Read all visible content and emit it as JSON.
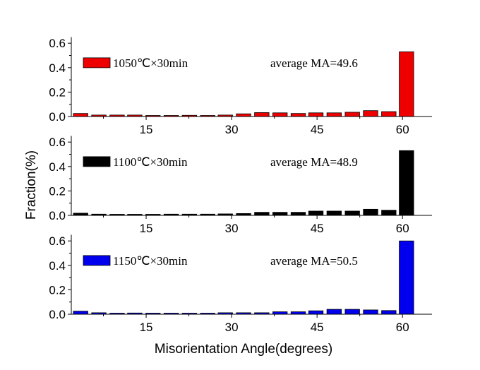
{
  "chart_data": [
    {
      "type": "bar",
      "legend": "1050℃×30min",
      "annotation": "average MA=49.6",
      "color": "#ee0000",
      "x": [
        3.5,
        6.7,
        9.9,
        13.0,
        16.2,
        19.4,
        22.6,
        25.8,
        28.9,
        32.1,
        35.3,
        38.5,
        41.7,
        44.8,
        48.0,
        51.2,
        54.4,
        57.6,
        60.7
      ],
      "values": [
        0.025,
        0.012,
        0.012,
        0.012,
        0.008,
        0.008,
        0.01,
        0.008,
        0.012,
        0.022,
        0.032,
        0.03,
        0.025,
        0.03,
        0.03,
        0.035,
        0.048,
        0.04,
        0.53
      ],
      "ylim": [
        0,
        0.65
      ],
      "xlim": [
        2,
        65
      ],
      "yticks": [
        "0.0",
        "0.2",
        "0.4",
        "0.6"
      ],
      "xticks": [
        "15",
        "30",
        "45",
        "60"
      ],
      "legend_position": "top-left"
    },
    {
      "type": "bar",
      "legend": "1100℃×30min",
      "annotation": "average MA=48.9",
      "color": "#000000",
      "x": [
        3.5,
        6.7,
        9.9,
        13.0,
        16.2,
        19.4,
        22.6,
        25.8,
        28.9,
        32.1,
        35.3,
        38.5,
        41.7,
        44.8,
        48.0,
        51.2,
        54.4,
        57.6,
        60.7
      ],
      "values": [
        0.018,
        0.01,
        0.008,
        0.008,
        0.008,
        0.01,
        0.01,
        0.01,
        0.012,
        0.015,
        0.025,
        0.025,
        0.025,
        0.035,
        0.035,
        0.035,
        0.05,
        0.042,
        0.53
      ],
      "ylim": [
        0,
        0.65
      ],
      "xlim": [
        2,
        65
      ],
      "yticks": [
        "0.0",
        "0.2",
        "0.4",
        "0.6"
      ],
      "xticks": [
        "15",
        "30",
        "45",
        "60"
      ],
      "legend_position": "top-left"
    },
    {
      "type": "bar",
      "legend": "1150℃×30min",
      "annotation": "average MA=50.5",
      "color": "#0000ee",
      "x": [
        3.5,
        6.7,
        9.9,
        13.0,
        16.2,
        19.4,
        22.6,
        25.8,
        28.9,
        32.1,
        35.3,
        38.5,
        41.7,
        44.8,
        48.0,
        51.2,
        54.4,
        57.6,
        60.7
      ],
      "values": [
        0.025,
        0.012,
        0.005,
        0.01,
        0.005,
        0.008,
        0.008,
        0.008,
        0.012,
        0.012,
        0.012,
        0.02,
        0.02,
        0.028,
        0.04,
        0.04,
        0.035,
        0.03,
        0.6
      ],
      "ylim": [
        0,
        0.65
      ],
      "xlim": [
        2,
        65
      ],
      "yticks": [
        "0.0",
        "0.2",
        "0.4",
        "0.6"
      ],
      "xticks": [
        "15",
        "30",
        "45",
        "60"
      ],
      "legend_position": "top-left"
    }
  ],
  "labels": {
    "ylabel": "Fraction(%)",
    "xlabel": "Misorientation Angle(degrees)"
  }
}
